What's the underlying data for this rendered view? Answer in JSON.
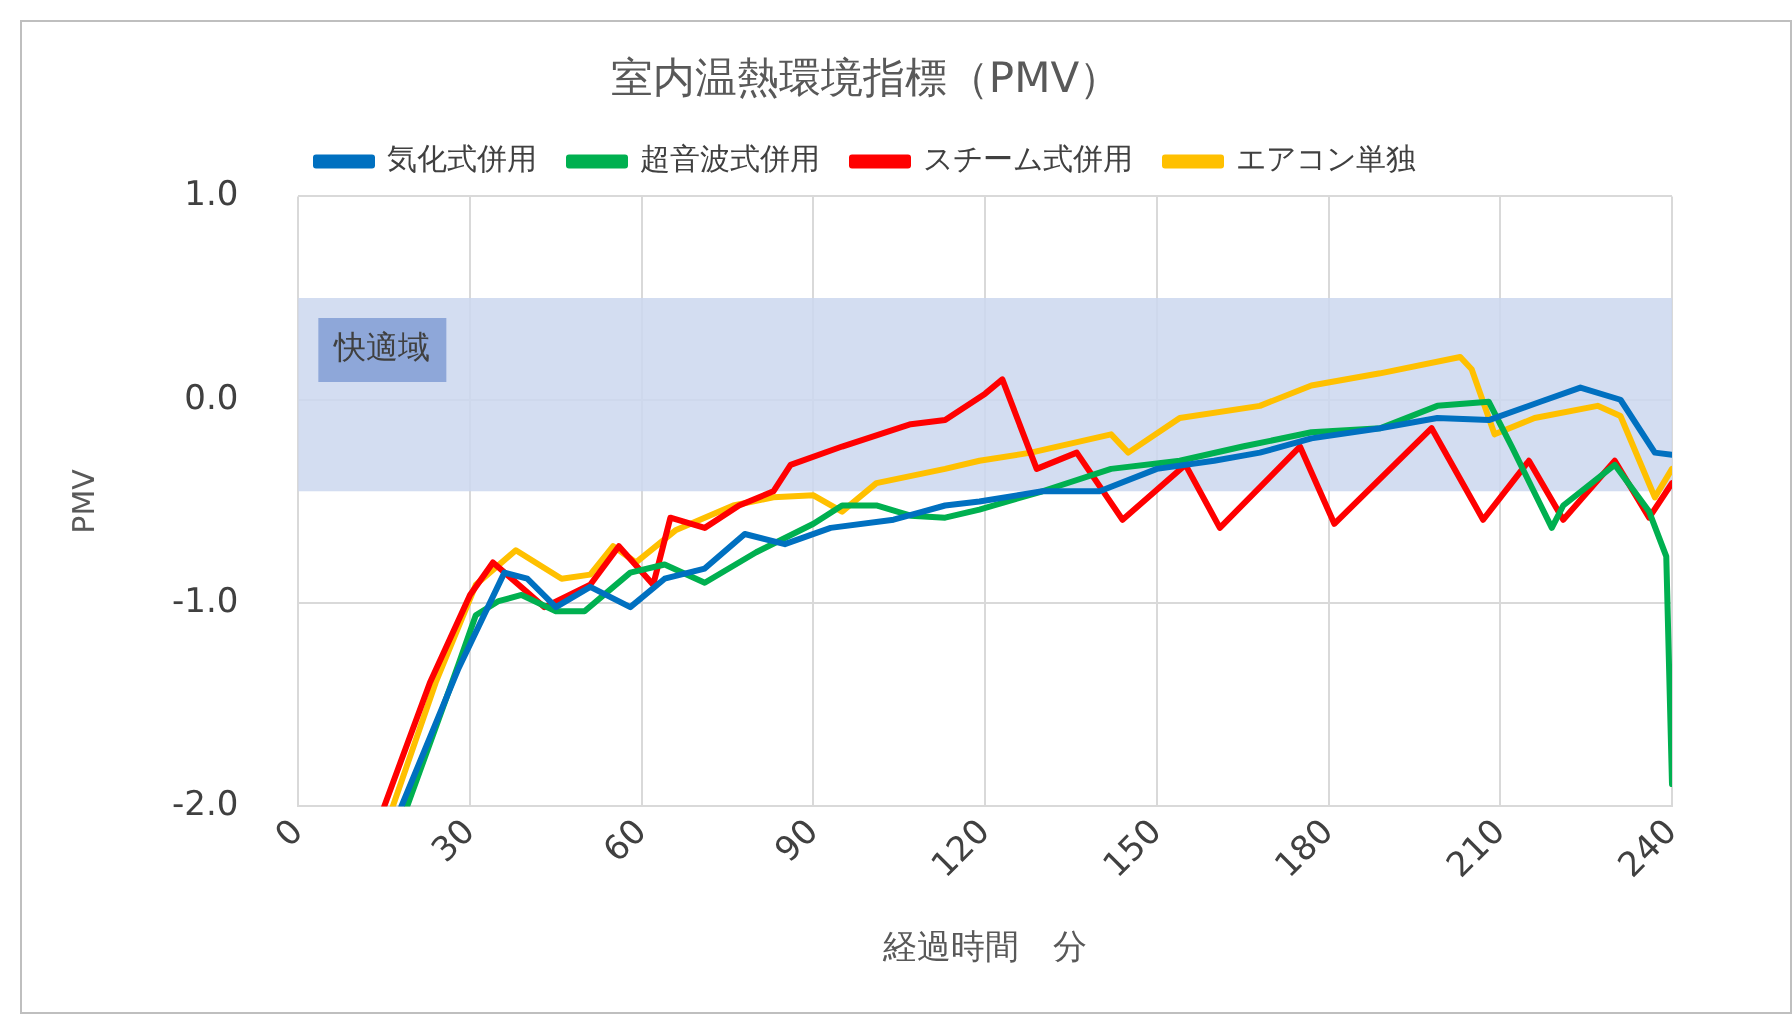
{
  "chart_data": {
    "type": "line",
    "title": "室内温熱環境指標（PMV）",
    "xlabel": "経過時間　分",
    "ylabel": "PMV",
    "xlim": [
      0,
      240
    ],
    "xticks": [
      0,
      30,
      60,
      90,
      120,
      150,
      180,
      210,
      240
    ],
    "ylim": [
      -2,
      1
    ],
    "yticks": [
      {
        "value": -2,
        "label": "-2.0"
      },
      {
        "value": -1,
        "label": "-1.0"
      },
      {
        "value": 0,
        "label": "0.0"
      },
      {
        "value": 1,
        "label": "1.0"
      }
    ],
    "grid": true,
    "legend": "top",
    "marker": "none",
    "line_style": "solid",
    "bands": [
      {
        "axis": "y",
        "from": -0.45,
        "to": 0.5,
        "label": "快適域",
        "color": "#cbd7ee"
      }
    ],
    "series": [
      {
        "name": "気化式併用",
        "color": "#0070c0",
        "x": [
          18,
          28,
          36,
          40,
          45,
          51,
          58,
          64,
          71,
          78,
          85,
          93,
          104,
          113,
          119,
          130,
          140,
          150,
          160,
          168,
          177,
          189,
          199,
          208,
          217,
          224,
          231,
          237,
          240
        ],
        "values": [
          -2.0,
          -1.32,
          -0.85,
          -0.88,
          -1.02,
          -0.92,
          -1.02,
          -0.88,
          -0.83,
          -0.66,
          -0.71,
          -0.63,
          -0.59,
          -0.52,
          -0.5,
          -0.45,
          -0.45,
          -0.34,
          -0.3,
          -0.26,
          -0.19,
          -0.14,
          -0.09,
          -0.1,
          -0.01,
          0.06,
          0,
          -0.26,
          -0.27
        ]
      },
      {
        "name": "超音波式併用",
        "color": "#00b050",
        "x": [
          19,
          28,
          31,
          35,
          39,
          45,
          50,
          58,
          64,
          71,
          80,
          90,
          95,
          101,
          107,
          113,
          119,
          130,
          142,
          154,
          165,
          177,
          189,
          199,
          208,
          212,
          219,
          221,
          230,
          236,
          239,
          240
        ],
        "values": [
          -2.0,
          -1.3,
          -1.06,
          -0.99,
          -0.96,
          -1.04,
          -1.04,
          -0.85,
          -0.81,
          -0.9,
          -0.75,
          -0.61,
          -0.52,
          -0.52,
          -0.57,
          -0.58,
          -0.54,
          -0.45,
          -0.34,
          -0.3,
          -0.23,
          -0.16,
          -0.14,
          -0.03,
          -0.01,
          -0.23,
          -0.63,
          -0.52,
          -0.32,
          -0.55,
          -0.77,
          -1.89
        ]
      },
      {
        "name": "スチーム式併用",
        "color": "#ff0000",
        "x": [
          15,
          23,
          30,
          34,
          43,
          51,
          56,
          62,
          65,
          71,
          77,
          83,
          86,
          95,
          107,
          113,
          120,
          123,
          129,
          136,
          144,
          155,
          161,
          175,
          181,
          198,
          207,
          215,
          221,
          230,
          236,
          240
        ],
        "values": [
          -2.0,
          -1.39,
          -0.96,
          -0.8,
          -1.02,
          -0.91,
          -0.72,
          -0.91,
          -0.58,
          -0.63,
          -0.52,
          -0.45,
          -0.32,
          -0.23,
          -0.12,
          -0.1,
          0.03,
          0.1,
          -0.34,
          -0.26,
          -0.59,
          -0.32,
          -0.63,
          -0.23,
          -0.61,
          -0.14,
          -0.59,
          -0.3,
          -0.59,
          -0.3,
          -0.58,
          -0.41
        ]
      },
      {
        "name": "エアコン単独",
        "color": "#ffc000",
        "x": [
          16.5,
          24,
          31,
          38,
          46,
          51,
          55,
          59,
          66,
          76,
          83,
          90,
          95,
          101,
          113,
          119,
          128,
          142,
          145,
          154,
          168,
          177,
          189,
          203,
          205,
          209,
          216,
          227,
          231,
          237,
          240
        ],
        "values": [
          -2.0,
          -1.39,
          -0.91,
          -0.74,
          -0.88,
          -0.86,
          -0.72,
          -0.8,
          -0.64,
          -0.52,
          -0.48,
          -0.47,
          -0.55,
          -0.41,
          -0.34,
          -0.3,
          -0.26,
          -0.17,
          -0.26,
          -0.09,
          -0.03,
          0.07,
          0.13,
          0.21,
          0.15,
          -0.17,
          -0.09,
          -0.03,
          -0.08,
          -0.48,
          -0.34
        ]
      }
    ]
  }
}
